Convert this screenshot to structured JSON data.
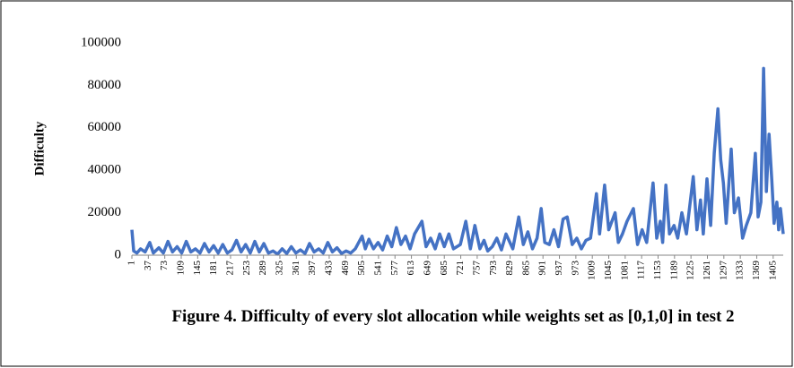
{
  "chart_data": {
    "type": "line",
    "title": "Figure 4. Difficulty of every slot allocation while weights set as [0,1,0] in test 2",
    "y_label": "Difficulty",
    "x": [
      1,
      5,
      12,
      20,
      30,
      40,
      48,
      60,
      70,
      80,
      90,
      100,
      110,
      120,
      130,
      140,
      150,
      160,
      170,
      180,
      190,
      200,
      210,
      220,
      230,
      240,
      250,
      260,
      270,
      280,
      290,
      300,
      310,
      320,
      330,
      340,
      350,
      360,
      370,
      380,
      390,
      400,
      410,
      420,
      430,
      440,
      450,
      460,
      470,
      480,
      490,
      505,
      512,
      520,
      530,
      540,
      550,
      560,
      570,
      580,
      590,
      600,
      610,
      620,
      636,
      645,
      655,
      665,
      675,
      685,
      695,
      705,
      720,
      732,
      742,
      752,
      763,
      772,
      780,
      790,
      800,
      810,
      820,
      835,
      848,
      858,
      868,
      878,
      888,
      897,
      905,
      915,
      925,
      935,
      945,
      954,
      965,
      975,
      985,
      995,
      1005,
      1018,
      1025,
      1036,
      1045,
      1059,
      1066,
      1075,
      1085,
      1099,
      1108,
      1118,
      1128,
      1142,
      1150,
      1158,
      1163,
      1170,
      1178,
      1188,
      1196,
      1205,
      1215,
      1230,
      1238,
      1246,
      1252,
      1260,
      1268,
      1276,
      1284,
      1290,
      1296,
      1302,
      1313,
      1320,
      1329,
      1338,
      1346,
      1356,
      1366,
      1372,
      1378,
      1384,
      1390,
      1396,
      1402,
      1407,
      1413,
      1417,
      1421,
      1427
    ],
    "series": [
      {
        "name": "Difficulty",
        "color": "#4472c4",
        "values": [
          12000,
          2000,
          1000,
          3000,
          1500,
          6000,
          1000,
          3500,
          1000,
          6500,
          1500,
          4000,
          1000,
          6500,
          1500,
          3000,
          1000,
          5500,
          1500,
          4500,
          1000,
          5000,
          1000,
          2500,
          7000,
          1500,
          5000,
          1000,
          6500,
          1500,
          5500,
          1000,
          2000,
          500,
          3000,
          800,
          4000,
          1000,
          2500,
          800,
          5500,
          1500,
          3000,
          1000,
          6000,
          1500,
          3500,
          800,
          2000,
          1000,
          3000,
          9000,
          3000,
          7500,
          3000,
          6000,
          2500,
          9000,
          4000,
          13000,
          5000,
          9000,
          3000,
          10000,
          16000,
          4000,
          8000,
          3000,
          10000,
          4000,
          10000,
          3000,
          5000,
          16000,
          3000,
          14000,
          3000,
          7000,
          2000,
          4000,
          8000,
          2500,
          10000,
          3000,
          18000,
          5000,
          11000,
          3000,
          8000,
          22000,
          6000,
          5000,
          12000,
          4000,
          17000,
          18000,
          5000,
          8000,
          3000,
          7000,
          8000,
          29000,
          10000,
          33000,
          12000,
          20000,
          6000,
          10000,
          16000,
          22000,
          5000,
          12000,
          6000,
          34000,
          8000,
          16000,
          6000,
          33000,
          10000,
          14000,
          8000,
          20000,
          10000,
          37000,
          12000,
          26000,
          10000,
          36000,
          14000,
          48000,
          69000,
          45000,
          34000,
          15000,
          50000,
          20000,
          27000,
          8000,
          14000,
          20000,
          48000,
          18000,
          25000,
          88000,
          30000,
          57000,
          35000,
          15000,
          25000,
          12000,
          22000,
          10000
        ]
      }
    ],
    "xlim": [
      1,
      1427
    ],
    "xticks": [
      1,
      37,
      73,
      109,
      145,
      181,
      217,
      253,
      289,
      325,
      361,
      397,
      433,
      469,
      505,
      541,
      577,
      613,
      649,
      685,
      721,
      757,
      793,
      829,
      865,
      901,
      937,
      973,
      1009,
      1045,
      1081,
      1117,
      1153,
      1189,
      1225,
      1261,
      1297,
      1333,
      1369,
      1405
    ],
    "ylim": [
      0,
      100000
    ],
    "yticks": [
      0,
      20000,
      40000,
      60000,
      80000,
      100000
    ]
  }
}
